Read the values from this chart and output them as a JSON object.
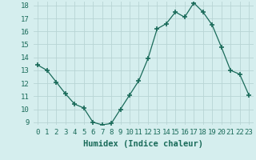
{
  "x": [
    0,
    1,
    2,
    3,
    4,
    5,
    6,
    7,
    8,
    9,
    10,
    11,
    12,
    13,
    14,
    15,
    16,
    17,
    18,
    19,
    20,
    21,
    22,
    23
  ],
  "y": [
    13.4,
    13.0,
    12.1,
    11.2,
    10.4,
    10.1,
    9.0,
    8.8,
    8.9,
    10.0,
    11.1,
    12.2,
    13.9,
    16.2,
    16.6,
    17.5,
    17.1,
    18.2,
    17.5,
    16.5,
    14.8,
    13.0,
    12.7,
    11.1
  ],
  "xlabel": "Humidex (Indice chaleur)",
  "ylim": [
    9,
    18
  ],
  "xlim": [
    -0.5,
    23.5
  ],
  "yticks": [
    9,
    10,
    11,
    12,
    13,
    14,
    15,
    16,
    17,
    18
  ],
  "xticks": [
    0,
    1,
    2,
    3,
    4,
    5,
    6,
    7,
    8,
    9,
    10,
    11,
    12,
    13,
    14,
    15,
    16,
    17,
    18,
    19,
    20,
    21,
    22,
    23
  ],
  "line_color": "#1a6b5a",
  "marker": "+",
  "marker_size": 4,
  "marker_lw": 1.2,
  "bg_color": "#d5eeee",
  "grid_color": "#b8d4d4",
  "xlabel_fontsize": 7.5,
  "tick_fontsize": 6.5
}
